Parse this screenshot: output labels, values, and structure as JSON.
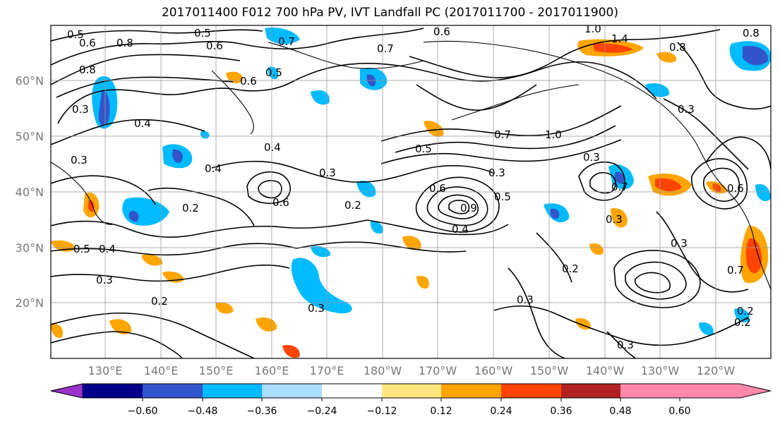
{
  "title": "2017011400 F012 700 hPa PV, IVT Landfall PC (2017011700 - 2017011900)",
  "lon_labels": [
    "130°E",
    "140°E",
    "150°E",
    "160°E",
    "170°E",
    "180°W",
    "170°W",
    "160°W",
    "150°W",
    "140°W",
    "130°W",
    "120°W"
  ],
  "lat_labels": [
    "60°N",
    "50°N",
    "40°N",
    "30°N",
    "20°N"
  ],
  "colorbar": {
    "colors": [
      "#9933cc",
      "#000088",
      "#3355cc",
      "#00bbff",
      "#aaddff",
      "#ffffff",
      "#ffe680",
      "#ffa500",
      "#ff4400",
      "#b22222",
      "#ff88aa"
    ],
    "tick_labels": [
      "−0.60",
      "−0.48",
      "−0.36",
      "−0.24",
      "−0.12",
      "0.12",
      "0.24",
      "0.36",
      "0.48",
      "0.60"
    ]
  },
  "contour_labels": [
    "0.5",
    "0.6",
    "0.8",
    "0.5",
    "0.6",
    "0.7",
    "0.6",
    "0.7",
    "1.0",
    "1.4",
    "0.8",
    "0.8",
    "0.3",
    "0.4",
    "0.6",
    "0.5",
    "0.4",
    "0.3",
    "0.4",
    "0.2",
    "0.6",
    "0.3",
    "0.2",
    "0.5",
    "0.7",
    "1.0",
    "0.3",
    "0.3",
    "0.6",
    "0.9",
    "0.4",
    "0.5",
    "0.2",
    "0.3",
    "0.7",
    "0.3",
    "0.4",
    "0.5",
    "0.3",
    "0.2",
    "0.3",
    "0.2",
    "0.3",
    "0.3",
    "0.8",
    "0.6",
    "0.7",
    "0.2",
    "0.3"
  ],
  "chart_data": {
    "type": "contour map",
    "fields": [
      "700 hPa PV (contours)",
      "IVT Landfall PC (shaded)"
    ],
    "shading_levels": [
      -0.6,
      -0.48,
      -0.36,
      -0.24,
      -0.12,
      0.12,
      0.24,
      0.36,
      0.48,
      0.6
    ],
    "longitude_range": [
      "120°E",
      "110°W"
    ],
    "latitude_range": [
      "10°N",
      "70°N"
    ],
    "grid": true
  }
}
